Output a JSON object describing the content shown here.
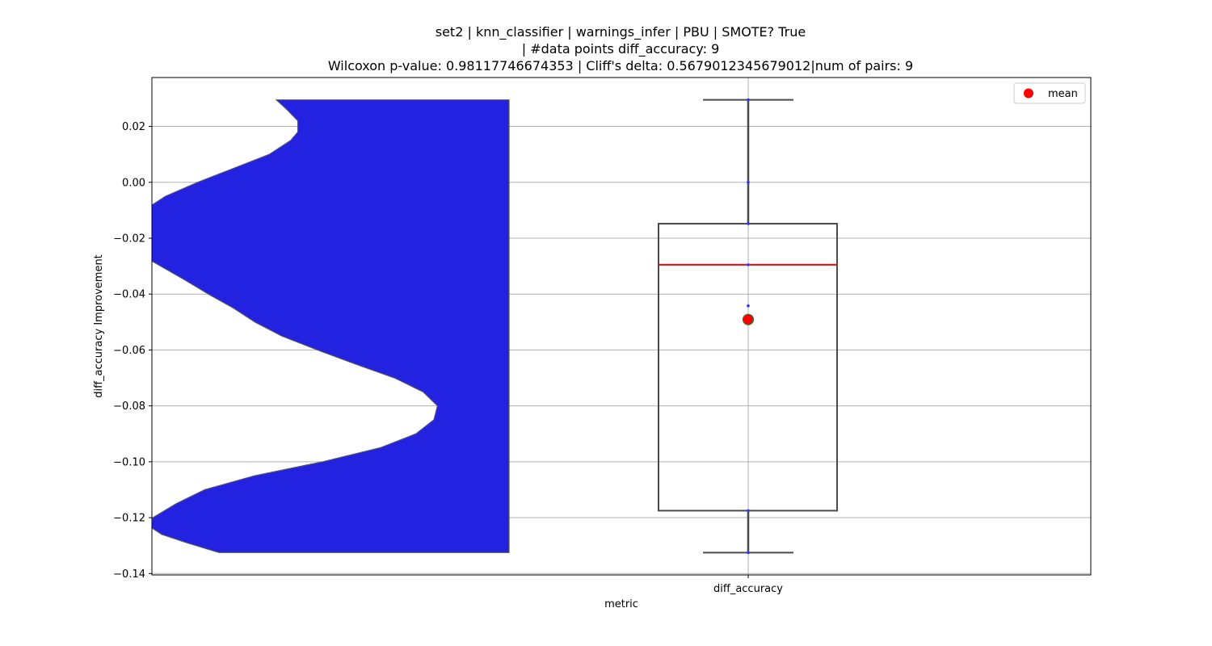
{
  "chart_data": {
    "type": "violin+box",
    "title_lines": [
      "set2 | knn_classifier | warnings_infer | PBU | SMOTE? True",
      "| #data points diff_accuracy: 9",
      "Wilcoxon p-value: 0.98117746674353 | Cliff's delta: 0.5679012345679012|num of pairs: 9"
    ],
    "xlabel": "metric",
    "ylabel": "diff_accuracy Improvement",
    "categories": [
      "diff_accuracy"
    ],
    "ylim": [
      -0.1405,
      0.0375
    ],
    "yticks": [
      -0.14,
      -0.12,
      -0.1,
      -0.08,
      -0.06,
      -0.04,
      -0.02,
      0.0,
      0.02
    ],
    "ytick_labels": [
      "−0.14",
      "−0.12",
      "−0.10",
      "−0.08",
      "−0.06",
      "−0.04",
      "−0.02",
      "0.00",
      "0.02"
    ],
    "grid": true,
    "legend": {
      "position": "top-right",
      "entries": [
        {
          "label": "mean",
          "marker": "circle",
          "color": "#ff0000"
        }
      ]
    },
    "box": {
      "category": "diff_accuracy",
      "whisker_low": -0.1325,
      "q1": -0.1175,
      "median": -0.0295,
      "q3": -0.0148,
      "whisker_high": 0.0295,
      "mean": -0.0491,
      "median_color": "#ff0000",
      "mean_color": "#ff0000",
      "box_edge_color": "#4a4a4a"
    },
    "points": [
      0.0295,
      0.0,
      -0.0148,
      -0.0295,
      -0.0442,
      -0.1175,
      -0.1325
    ],
    "point_color": "#3333ff",
    "violin": {
      "color": "#2222e0",
      "edge_color": "#555555",
      "ymin": -0.1325,
      "ymax": 0.0295,
      "profile": [
        [
          0.0295,
          0.65
        ],
        [
          0.026,
          0.62
        ],
        [
          0.022,
          0.59
        ],
        [
          0.018,
          0.59
        ],
        [
          0.015,
          0.61
        ],
        [
          0.01,
          0.67
        ],
        [
          0.005,
          0.77
        ],
        [
          0.0,
          0.87
        ],
        [
          -0.005,
          0.96
        ],
        [
          -0.01,
          1.02
        ],
        [
          -0.02,
          1.04
        ],
        [
          -0.028,
          1.0
        ],
        [
          -0.035,
          0.905
        ],
        [
          -0.04,
          0.84
        ],
        [
          -0.045,
          0.77
        ],
        [
          -0.05,
          0.71
        ],
        [
          -0.055,
          0.635
        ],
        [
          -0.06,
          0.535
        ],
        [
          -0.065,
          0.43
        ],
        [
          -0.07,
          0.32
        ],
        [
          -0.075,
          0.24
        ],
        [
          -0.08,
          0.2
        ],
        [
          -0.085,
          0.21
        ],
        [
          -0.09,
          0.26
        ],
        [
          -0.095,
          0.36
        ],
        [
          -0.1,
          0.52
        ],
        [
          -0.105,
          0.71
        ],
        [
          -0.11,
          0.85
        ],
        [
          -0.115,
          0.93
        ],
        [
          -0.12,
          0.995
        ],
        [
          -0.1235,
          1.0
        ],
        [
          -0.126,
          0.97
        ],
        [
          -0.129,
          0.9
        ],
        [
          -0.1325,
          0.81
        ]
      ]
    }
  }
}
